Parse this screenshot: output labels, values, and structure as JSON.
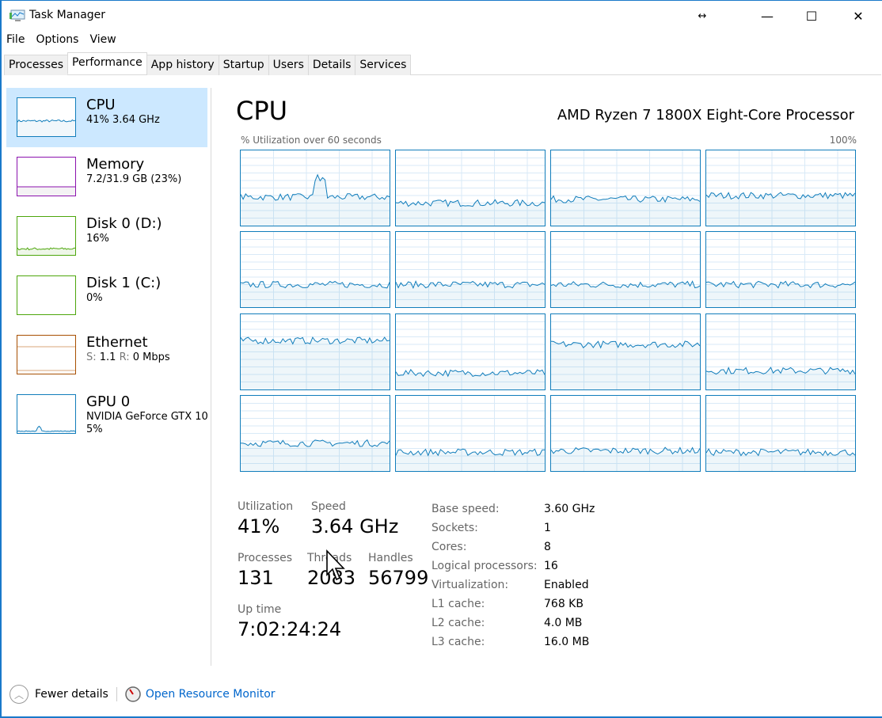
{
  "window": {
    "title": "Task Manager",
    "controls": {
      "minimize": "—",
      "maximize": "☐",
      "close": "✕"
    }
  },
  "menu": [
    "File",
    "Options",
    "View"
  ],
  "tabs": [
    {
      "label": "Processes"
    },
    {
      "label": "Performance",
      "active": true
    },
    {
      "label": "App history"
    },
    {
      "label": "Startup"
    },
    {
      "label": "Users"
    },
    {
      "label": "Details"
    },
    {
      "label": "Services"
    }
  ],
  "sidebar": [
    {
      "name": "CPU",
      "sub": "41% 3.64 GHz",
      "color": "#117dbb",
      "active": true
    },
    {
      "name": "Memory",
      "sub": "7.2/31.9 GB (23%)",
      "color": "#8b12ae"
    },
    {
      "name": "Disk 0 (D:)",
      "sub": "16%",
      "color": "#4da60c"
    },
    {
      "name": "Disk 1 (C:)",
      "sub": "0%",
      "color": "#4da60c"
    },
    {
      "name": "Ethernet",
      "sub_s_label": "S:",
      "sub_s": "1.1",
      "sub_r_label": "R:",
      "sub_r": "0 Mbps",
      "color": "#a74f01"
    },
    {
      "name": "GPU 0",
      "sub": "NVIDIA GeForce GTX 10",
      "sub2": "5%",
      "color": "#117dbb"
    }
  ],
  "main": {
    "title": "CPU",
    "processor": "AMD Ryzen 7 1800X Eight-Core Processor",
    "graph_label": "% Utilization over 60 seconds",
    "graph_max": "100%",
    "core_levels_percent": [
      38,
      30,
      35,
      40,
      30,
      30,
      30,
      30,
      65,
      22,
      60,
      25,
      37,
      25,
      27,
      25
    ],
    "stats": {
      "utilization": {
        "label": "Utilization",
        "value": "41%"
      },
      "speed": {
        "label": "Speed",
        "value": "3.64 GHz"
      },
      "processes": {
        "label": "Processes",
        "value": "131"
      },
      "threads": {
        "label": "Threads",
        "value": "2083"
      },
      "handles": {
        "label": "Handles",
        "value": "56799"
      },
      "uptime": {
        "label": "Up time",
        "value": "7:02:24:24"
      }
    },
    "details": [
      {
        "k": "Base speed:",
        "v": "3.60 GHz"
      },
      {
        "k": "Sockets:",
        "v": "1"
      },
      {
        "k": "Cores:",
        "v": "8"
      },
      {
        "k": "Logical processors:",
        "v": "16"
      },
      {
        "k": "Virtualization:",
        "v": "Enabled"
      },
      {
        "k": "L1 cache:",
        "v": "768 KB"
      },
      {
        "k": "L2 cache:",
        "v": "4.0 MB"
      },
      {
        "k": "L3 cache:",
        "v": "16.0 MB"
      }
    ]
  },
  "footer": {
    "fewer": "Fewer details",
    "resmon": "Open Resource Monitor"
  },
  "colors": {
    "accent": "#117dbb",
    "selection": "#cce8ff",
    "link": "#0066cc"
  }
}
